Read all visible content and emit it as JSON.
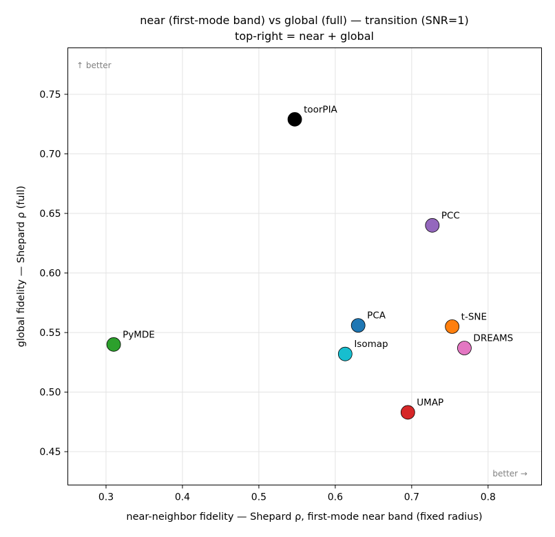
{
  "chart_data": {
    "type": "scatter",
    "title": "near (first-mode band) vs global (full) — transition (SNR=1)",
    "subtitle": "top-right = near + global",
    "xlabel": "near-neighbor fidelity — Shepard ρ, first-mode near band (fixed radius)",
    "ylabel": "global fidelity — Shepard ρ (full)",
    "xlim": [
      0.25,
      0.87
    ],
    "ylim": [
      0.422,
      0.789
    ],
    "xticks": [
      0.3,
      0.4,
      0.5,
      0.6,
      0.7,
      0.8
    ],
    "xtick_labels": [
      "0.3",
      "0.4",
      "0.5",
      "0.6",
      "0.7",
      "0.8"
    ],
    "yticks": [
      0.45,
      0.5,
      0.55,
      0.6,
      0.65,
      0.7,
      0.75
    ],
    "ytick_labels": [
      "0.45",
      "0.50",
      "0.55",
      "0.60",
      "0.65",
      "0.70",
      "0.75"
    ],
    "grid": true,
    "annotations": [
      {
        "text": "↑ better",
        "position": "top-left"
      },
      {
        "text": "better →",
        "position": "bottom-right"
      }
    ],
    "points": [
      {
        "label": "toorPIA",
        "x": 0.547,
        "y": 0.729,
        "color": "#000000"
      },
      {
        "label": "PCC",
        "x": 0.727,
        "y": 0.64,
        "color": "#9467bd"
      },
      {
        "label": "PCA",
        "x": 0.63,
        "y": 0.556,
        "color": "#1f77b4"
      },
      {
        "label": "t-SNE",
        "x": 0.753,
        "y": 0.555,
        "color": "#ff7f0e"
      },
      {
        "label": "PyMDE",
        "x": 0.31,
        "y": 0.54,
        "color": "#2ca02c"
      },
      {
        "label": "DREAMS",
        "x": 0.769,
        "y": 0.537,
        "color": "#e377c2"
      },
      {
        "label": "Isomap",
        "x": 0.613,
        "y": 0.532,
        "color": "#17becf"
      },
      {
        "label": "UMAP",
        "x": 0.695,
        "y": 0.483,
        "color": "#d62728"
      }
    ]
  }
}
